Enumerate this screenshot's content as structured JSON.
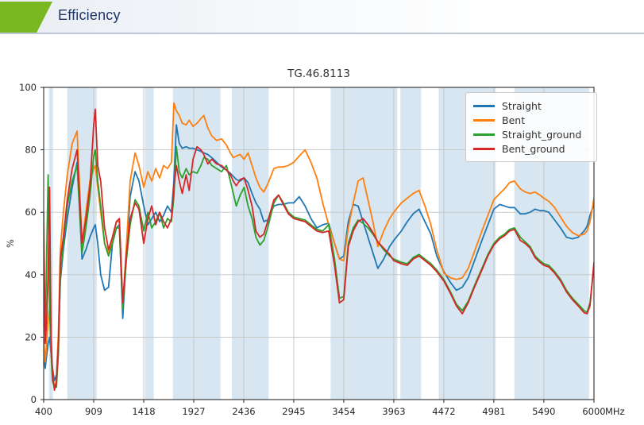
{
  "header": {
    "title": "Efficiency",
    "accent_color": "#79b821",
    "underline_color": "#bcc8d8",
    "title_color": "#1c3666"
  },
  "chart_data": {
    "type": "line",
    "title": "TG.46.8113",
    "ylabel": "%",
    "x_unit_label": "MHz",
    "xlim": [
      400,
      6000
    ],
    "ylim": [
      0,
      100
    ],
    "xticks": [
      400,
      909,
      1418,
      1927,
      2436,
      2945,
      3454,
      3963,
      4472,
      4981,
      5490,
      6000
    ],
    "yticks": [
      0,
      20,
      40,
      60,
      80,
      100
    ],
    "grid": true,
    "grid_color": "#c3c3c3",
    "band_color": "#d7e6f0",
    "spine_color": "#3c3c3c",
    "tick_label_color": "#262626",
    "legend_position": "upper right",
    "shaded_bands_mhz": [
      [
        455,
        495
      ],
      [
        640,
        940
      ],
      [
        1430,
        1520
      ],
      [
        1715,
        2200
      ],
      [
        2315,
        2690
      ],
      [
        3320,
        4000
      ],
      [
        4030,
        4240
      ],
      [
        4420,
        5000
      ],
      [
        5190,
        5950
      ]
    ],
    "x": [
      400,
      415,
      430,
      445,
      460,
      475,
      490,
      510,
      530,
      550,
      570,
      600,
      640,
      690,
      740,
      790,
      830,
      870,
      909,
      925,
      950,
      980,
      1020,
      1060,
      1100,
      1140,
      1170,
      1205,
      1240,
      1280,
      1330,
      1370,
      1418,
      1460,
      1500,
      1540,
      1580,
      1620,
      1660,
      1700,
      1725,
      1750,
      1780,
      1810,
      1850,
      1880,
      1920,
      1960,
      2000,
      2030,
      2070,
      2110,
      2160,
      2210,
      2260,
      2300,
      2330,
      2360,
      2400,
      2440,
      2480,
      2520,
      2560,
      2600,
      2640,
      2680,
      2743,
      2790,
      2840,
      2890,
      2945,
      3000,
      3060,
      3120,
      3180,
      3240,
      3300,
      3360,
      3410,
      3454,
      3500,
      3550,
      3600,
      3650,
      3700,
      3750,
      3800,
      3860,
      3920,
      3963,
      4040,
      4100,
      4160,
      4220,
      4280,
      4340,
      4400,
      4472,
      4540,
      4600,
      4660,
      4720,
      4790,
      4860,
      4920,
      4981,
      5040,
      5090,
      5140,
      5190,
      5250,
      5300,
      5350,
      5400,
      5450,
      5490,
      5540,
      5600,
      5660,
      5720,
      5780,
      5840,
      5900,
      5930,
      5960,
      6000
    ],
    "series": [
      {
        "name": "Straight",
        "color": "#1f77b4",
        "values": [
          15,
          10,
          14,
          18,
          20,
          15,
          10,
          6,
          8,
          20,
          38,
          48,
          58,
          68,
          76,
          45,
          48,
          52,
          55,
          56,
          50,
          40,
          35,
          36,
          50,
          55,
          56,
          26,
          45,
          65,
          73,
          70,
          62,
          56,
          58,
          60,
          57,
          59,
          62,
          60,
          70,
          88,
          82,
          80.5,
          81,
          80.5,
          80.5,
          80,
          79.5,
          79,
          78.5,
          77.5,
          76,
          74.5,
          73.5,
          72.5,
          71.5,
          70.5,
          70,
          71,
          69.5,
          66,
          63,
          61,
          57,
          57.5,
          62,
          62.5,
          62.5,
          63,
          63,
          65,
          62,
          58,
          55,
          56,
          56.5,
          50,
          45,
          46,
          57,
          62.5,
          62,
          57,
          52,
          47,
          42,
          45,
          49,
          51,
          54,
          57,
          59.5,
          61,
          57,
          53,
          46,
          41,
          37.5,
          35,
          36,
          39,
          45,
          51,
          56,
          61,
          62.5,
          62,
          61.5,
          61.5,
          59.5,
          59.5,
          60,
          61,
          60.5,
          60.5,
          60,
          57.5,
          55,
          52,
          51.5,
          52,
          54,
          55.5,
          59,
          62.5
        ]
      },
      {
        "name": "Bent",
        "color": "#ff7f0e",
        "values": [
          20,
          12,
          18,
          25,
          30,
          18,
          8,
          4,
          6,
          22,
          48,
          60,
          72,
          82,
          86,
          50,
          60,
          70,
          74,
          75,
          68,
          60,
          50,
          47,
          52,
          57,
          57,
          30,
          48,
          70,
          79,
          75,
          68,
          73,
          70,
          74,
          71,
          75,
          74,
          76,
          95,
          92.5,
          91,
          88.5,
          88,
          89.5,
          87.5,
          88.5,
          90,
          91,
          87,
          84.5,
          83,
          83.5,
          81.5,
          79,
          77.5,
          78,
          78.5,
          77,
          79,
          75,
          71,
          68,
          66.5,
          69,
          74,
          74.5,
          74.5,
          75,
          76,
          78,
          80,
          76,
          71,
          63,
          56,
          50,
          45,
          44.5,
          55,
          63,
          70,
          71,
          64,
          57,
          49,
          54,
          58,
          60,
          63,
          64.5,
          66,
          67,
          62,
          56,
          48,
          40.5,
          39,
          38.5,
          39,
          42,
          48,
          54,
          59,
          64,
          66,
          67.5,
          69.5,
          70,
          67.5,
          66.5,
          66,
          66.5,
          65.5,
          64.5,
          63.5,
          61.5,
          58.5,
          55.5,
          53.5,
          52.5,
          53,
          54,
          57,
          64.5
        ]
      },
      {
        "name": "Straight_ground",
        "color": "#2ca02c",
        "values": [
          35,
          20,
          45,
          72,
          30,
          15,
          6,
          4,
          4,
          15,
          40,
          50,
          62,
          70,
          75,
          47,
          55,
          65,
          78,
          80,
          70,
          62,
          50,
          46,
          50,
          55,
          55,
          29,
          44,
          56,
          64,
          62,
          54,
          60,
          55,
          57,
          60,
          55,
          58,
          57,
          65,
          81,
          73,
          71,
          74,
          72,
          73,
          72.5,
          75,
          77.5,
          77,
          75,
          74,
          73,
          75,
          70,
          66,
          62,
          65.5,
          68,
          62,
          58,
          52,
          49.5,
          51,
          55,
          63,
          65.5,
          63,
          60,
          58.5,
          58,
          57.5,
          56,
          54.5,
          54,
          56,
          45,
          32.5,
          33,
          50,
          55,
          57.5,
          56.5,
          55,
          53,
          50.5,
          48,
          46,
          45,
          44,
          43.5,
          45.5,
          46.5,
          45,
          43.5,
          41.5,
          38.5,
          34.5,
          30.5,
          28.5,
          31.5,
          37,
          42,
          46.5,
          50,
          52,
          53,
          54.5,
          55,
          52,
          50.5,
          49,
          46,
          44.5,
          43.5,
          43,
          41,
          38.5,
          35,
          32.5,
          30.5,
          28.5,
          28,
          31,
          43
        ]
      },
      {
        "name": "Bent_ground",
        "color": "#d62728",
        "values": [
          60,
          18,
          25,
          40,
          68,
          20,
          8,
          3,
          6,
          18,
          45,
          52,
          64,
          74,
          80,
          50,
          58,
          68,
          88,
          93,
          75,
          70,
          55,
          48,
          52,
          57,
          58,
          31,
          46,
          58,
          63,
          61,
          50,
          58,
          62,
          56,
          60,
          57,
          55,
          58,
          68,
          75,
          70,
          66,
          72,
          67,
          77,
          81,
          80,
          78.5,
          75.5,
          77,
          75.5,
          75,
          73.5,
          72,
          70,
          68.5,
          70.5,
          71,
          67,
          62,
          54,
          52,
          53,
          57,
          64,
          65.5,
          62.5,
          59.5,
          58,
          57.5,
          57,
          55.5,
          54,
          53.5,
          54,
          43,
          31,
          32,
          49,
          54,
          57,
          58,
          56,
          53.5,
          50.5,
          48.5,
          46.5,
          44.5,
          43.5,
          43,
          45,
          46,
          44.5,
          43,
          41,
          38,
          34,
          30,
          27.5,
          31,
          36.5,
          41.5,
          46,
          49.5,
          51.5,
          52.5,
          54,
          54.5,
          51,
          50,
          48.5,
          45.5,
          44,
          43,
          42.5,
          40.5,
          38,
          34.5,
          32,
          30,
          27.8,
          27.5,
          30,
          44
        ]
      }
    ]
  }
}
